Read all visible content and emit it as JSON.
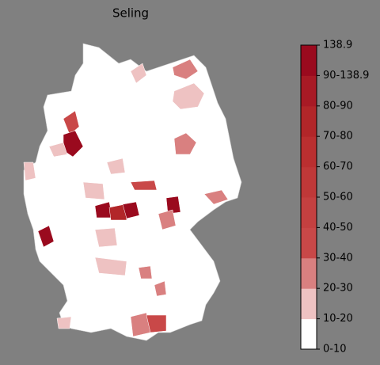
{
  "title": "Seling",
  "colorbar": {
    "labels": [
      "0-10",
      "10-20",
      "20-30",
      "30-40",
      "40-50",
      "50-60",
      "60-70",
      "70-80",
      "80-90",
      "90-138.9",
      "138.9"
    ],
    "colors": [
      "#ffffff",
      "#eec2c2",
      "#d98080",
      "#c94848",
      "#c44040",
      "#bf3838",
      "#ba2f30",
      "#b22629",
      "#a81a25",
      "#9a0a1e"
    ]
  }
}
